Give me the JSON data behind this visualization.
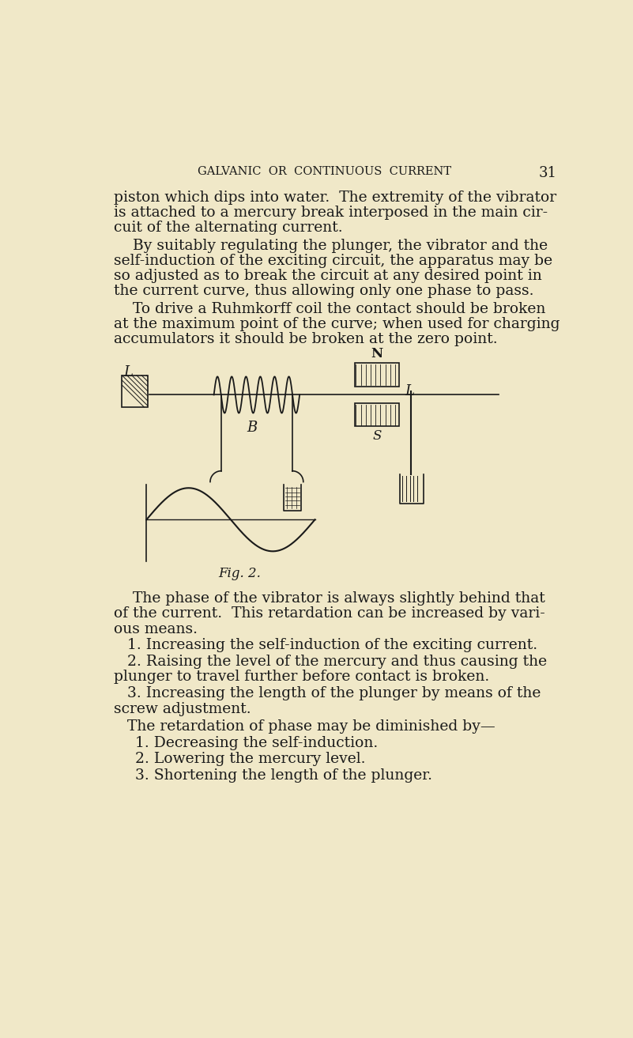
{
  "bg_color": "#f0e8c8",
  "text_color": "#1a1a1a",
  "page_width": 8.01,
  "page_height": 13.13,
  "header_text": "GALVANIC  OR  CONTINUOUS  CURRENT",
  "page_number": "31",
  "fig_caption": "Fig. 2.",
  "item1a": "1. Increasing the self-induction of the exciting current.",
  "item2a_1": "2. Raising the level of the mercury and thus causing the",
  "item2a_2": "plunger to travel further before contact is broken.",
  "item3a_1": "3. Increasing the length of the plunger by means of the",
  "item3a_2": "screw adjustment.",
  "paragraph5": "The retardation of phase may be diminished by—",
  "item1b": "1. Decreasing the self-induction.",
  "item2b": "2. Lowering the mercury level.",
  "item3b": "3. Shortening the length of the plunger."
}
